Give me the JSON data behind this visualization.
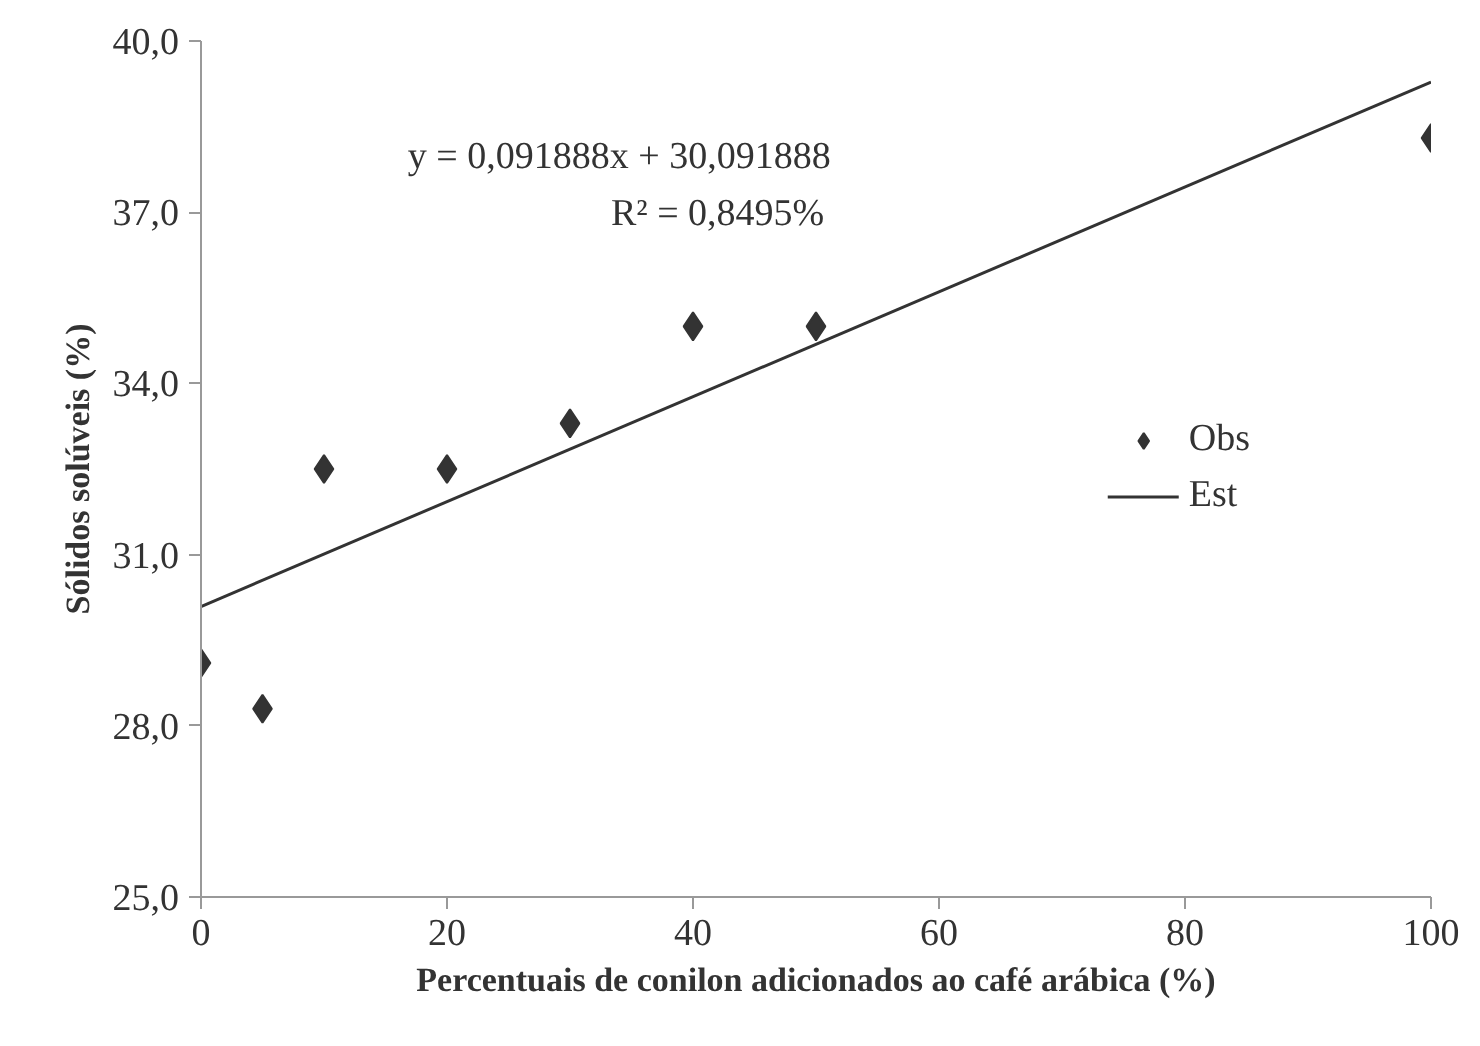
{
  "chart_data": {
    "type": "scatter",
    "xlabel": "Percentuais de conilon adicionados ao café arábica (%)",
    "ylabel": "Sólidos solúveis (%)",
    "annotations": [
      "y = 0,091888x + 30,091888",
      "R² = 0,8495%"
    ],
    "x": [
      0,
      5,
      10,
      20,
      30,
      40,
      50,
      100
    ],
    "series": [
      {
        "name": "Obs",
        "color": "#333333",
        "marker": "diamond",
        "values": [
          29.1,
          28.3,
          32.5,
          32.5,
          33.3,
          35.0,
          35.0,
          38.3
        ]
      },
      {
        "name": "Est",
        "type": "line",
        "color": "#333333",
        "x": [
          0,
          100
        ],
        "values": [
          30.09,
          39.28
        ]
      }
    ],
    "xlim": [
      0,
      100
    ],
    "xticks": [
      0,
      20,
      40,
      60,
      80,
      100
    ],
    "ylim": [
      25,
      40
    ],
    "yticks": [
      {
        "value": 25,
        "label": "25,0"
      },
      {
        "value": 28,
        "label": "28,0"
      },
      {
        "value": 31,
        "label": "31,0"
      },
      {
        "value": 34,
        "label": "34,0"
      },
      {
        "value": 37,
        "label": "37,0"
      },
      {
        "value": 40,
        "label": "40,0"
      }
    ],
    "grid": false,
    "legend": "right",
    "line_style": "solid"
  }
}
